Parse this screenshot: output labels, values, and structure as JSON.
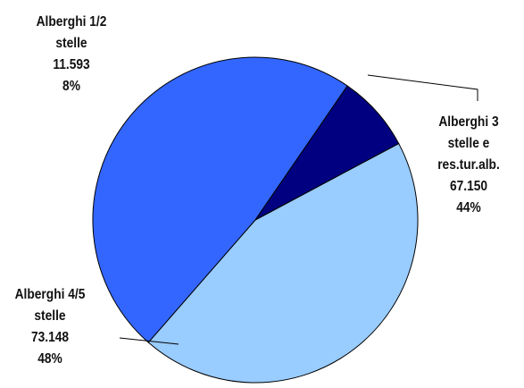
{
  "chart_data": {
    "type": "pie",
    "title": "",
    "slices": [
      {
        "label_lines": [
          "Alberghi 3",
          "stelle e",
          "res.tur.alb."
        ],
        "value": 67150,
        "value_text": "67.150",
        "percent_text": "44%",
        "color": "#99CCFF"
      },
      {
        "label_lines": [
          "Alberghi 4/5",
          "stelle"
        ],
        "value": 73148,
        "value_text": "73.148",
        "percent_text": "48%",
        "color": "#3366FF"
      },
      {
        "label_lines": [
          "Alberghi 1/2",
          "stelle"
        ],
        "value": 11593,
        "value_text": "11.593",
        "percent_text": "8%",
        "color": "#000080"
      }
    ],
    "legend": "none"
  }
}
